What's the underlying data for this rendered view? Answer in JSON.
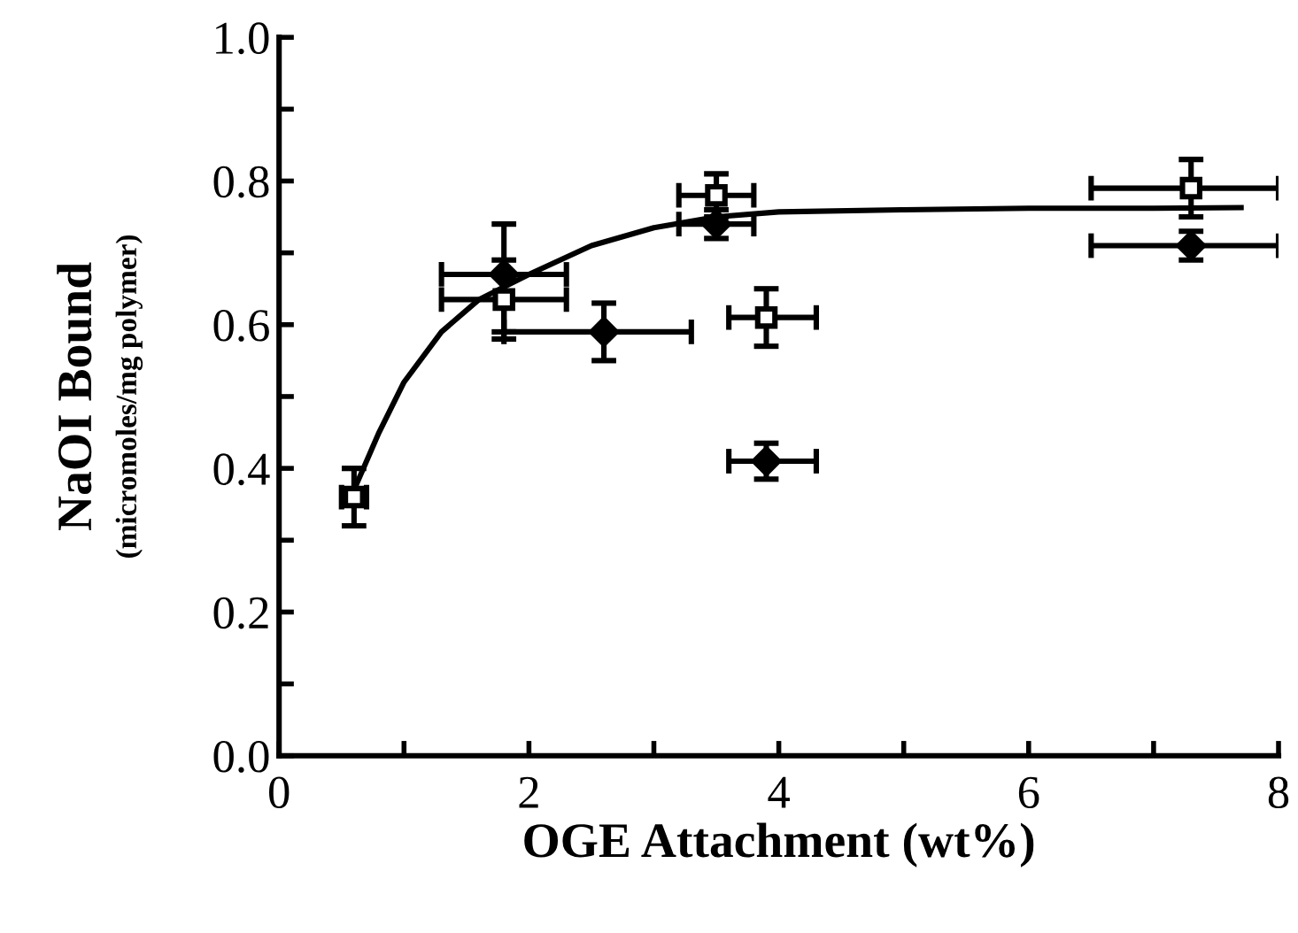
{
  "chart_data": {
    "type": "scatter",
    "xlabel": "OGE Attachment (wt%)",
    "ylabel": "NaOI Bound\n(micromoles/mg polymer)",
    "xlim": [
      0,
      8
    ],
    "ylim": [
      0,
      1.0
    ],
    "xticks": [
      0,
      {
        "value": 1,
        "label": null
      },
      2,
      {
        "value": 3,
        "label": null
      },
      4,
      {
        "value": 5,
        "label": null
      },
      6,
      {
        "value": 7,
        "label": null
      },
      8
    ],
    "yticks": [
      {
        "value": 0,
        "label": "0.0"
      },
      {
        "value": 0.1,
        "label": null
      },
      0.2,
      {
        "value": 0.3,
        "label": null
      },
      0.4,
      {
        "value": 0.5,
        "label": null
      },
      0.6,
      {
        "value": 0.7,
        "label": null
      },
      0.8,
      {
        "value": 0.9,
        "label": null
      },
      {
        "value": 1.0,
        "label": "1.0"
      }
    ],
    "grid": false,
    "legend": false,
    "series": [
      {
        "marker": "square",
        "color": "#000000",
        "x": [
          0.6,
          1.8,
          3.5,
          3.9,
          7.3
        ],
        "values": [
          0.36,
          0.635,
          0.78,
          0.61,
          0.79
        ],
        "errors": [
          [
            0.32,
            0.4
          ],
          [
            0.58,
            0.69
          ],
          [
            0.75,
            0.81
          ],
          [
            0.57,
            0.65
          ],
          [
            0.75,
            0.83
          ]
        ],
        "xerrors": [
          [
            0.5,
            0.7
          ],
          [
            1.3,
            2.3
          ],
          [
            3.2,
            3.8
          ],
          [
            3.6,
            4.3
          ],
          [
            6.5,
            8.0
          ]
        ]
      },
      {
        "marker": "diamond",
        "color": "#000000",
        "x": [
          1.8,
          2.6,
          3.5,
          3.9,
          7.3
        ],
        "values": [
          0.67,
          0.59,
          0.74,
          0.41,
          0.71
        ],
        "errors": [
          [
            0.59,
            0.74
          ],
          [
            0.55,
            0.63
          ],
          [
            0.72,
            0.76
          ],
          [
            0.385,
            0.435
          ],
          [
            0.69,
            0.73
          ]
        ],
        "xerrors": [
          [
            1.3,
            2.3
          ],
          [
            1.8,
            3.3
          ],
          [
            3.2,
            3.8
          ],
          [
            3.6,
            4.3
          ],
          [
            6.5,
            8.0
          ]
        ]
      },
      {
        "type": "line",
        "marker": "none",
        "line_style": "solid",
        "color": "#000000",
        "x": [
          0.6,
          0.8,
          1.0,
          1.3,
          1.6,
          2.0,
          2.5,
          3.0,
          3.5,
          4.0,
          5.0,
          6.0,
          7.0,
          7.7
        ],
        "values": [
          0.37,
          0.45,
          0.52,
          0.59,
          0.635,
          0.67,
          0.71,
          0.735,
          0.75,
          0.757,
          0.76,
          0.762,
          0.762,
          0.763
        ]
      }
    ]
  }
}
